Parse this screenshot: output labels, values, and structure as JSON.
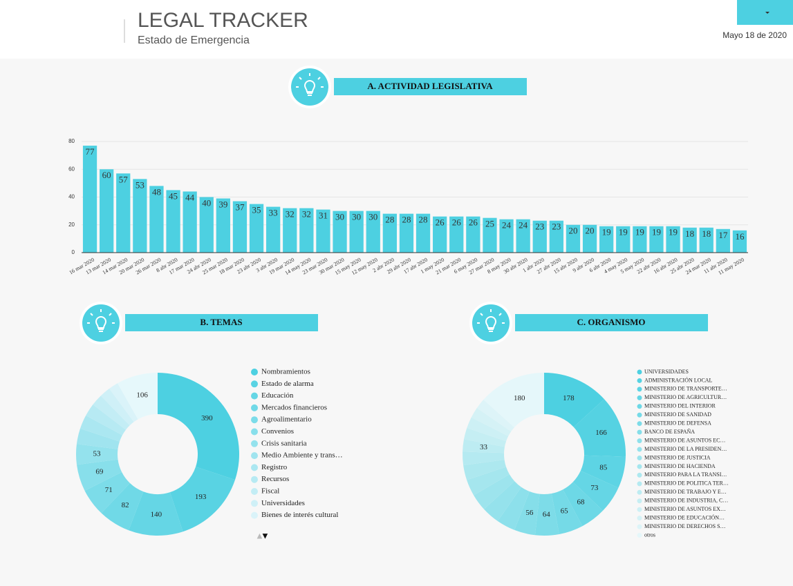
{
  "header": {
    "title": "LEGAL TRACKER",
    "subtitle": "Estado de Emergencia",
    "date": "Mayo 18 de 2020"
  },
  "chart_data": [
    {
      "type": "bar",
      "title": "A. ACTIVIDAD LEGISLATIVA",
      "color": "#4dd0e1",
      "categories": [
        "16 mar 2020",
        "13 mar 2020",
        "14 mar 2020",
        "20 mar 2020",
        "26 mar 2020",
        "8 abr 2020",
        "17 mar 2020",
        "24 abr 2020",
        "25 mar 2020",
        "18 mar 2020",
        "23 abr 2020",
        "3 abr 2020",
        "19 mar 2020",
        "14 may 2020",
        "23 mar 2020",
        "30 mar 2020",
        "15 may 2020",
        "12 may 2020",
        "2 abr 2020",
        "29 abr 2020",
        "17 abr 2020",
        "1 may 2020",
        "21 mar 2020",
        "6 may 2020",
        "27 mar 2020",
        "8 may 2020",
        "30 abr 2020",
        "1 abr 2020",
        "27 abr 2020",
        "15 abr 2020",
        "9 abr 2020",
        "6 abr 2020",
        "4 may 2020",
        "5 may 2020",
        "22 abr 2020",
        "16 abr 2020",
        "25 abr 2020",
        "24 mar 2020",
        "11 abr 2020",
        "11 may 2020"
      ],
      "values": [
        77,
        60,
        57,
        53,
        48,
        45,
        44,
        40,
        39,
        37,
        35,
        33,
        32,
        32,
        31,
        30,
        30,
        30,
        28,
        28,
        28,
        26,
        26,
        26,
        25,
        24,
        24,
        23,
        23,
        20,
        20,
        19,
        19,
        19,
        19,
        19,
        18,
        18,
        17,
        16
      ],
      "ylim": [
        0,
        80
      ],
      "yticks": [
        0,
        20,
        40,
        60,
        80
      ],
      "grid": true
    },
    {
      "type": "pie",
      "title": "B. TEMAS",
      "categories": [
        "Nombramientos",
        "Estado de alarma",
        "Educación",
        "Mercados financieros",
        "Agroalimentario",
        "Convenios",
        "Crisis sanitaria",
        "Medio Ambiente y trans…",
        "Registro",
        "Recursos",
        "Fiscal",
        "Universidades",
        "Bienes de interés cultural",
        null
      ],
      "values": [
        390,
        193,
        140,
        82,
        71,
        69,
        53,
        40,
        36,
        33,
        30,
        28,
        25,
        106
      ],
      "value_labels": [
        "390",
        "193",
        "140",
        "82",
        "71",
        "69",
        "53",
        null,
        null,
        null,
        null,
        null,
        null,
        "106"
      ],
      "colors": [
        "#4dd0e1",
        "#59d3e3",
        "#65d6e5",
        "#70d9e7",
        "#7cdce9",
        "#88dfeb",
        "#94e2ed",
        "#a0e4ef",
        "#abe7f1",
        "#b7eaf3",
        "#c3edf5",
        "#cff0f7",
        "#daf3f9",
        "#e6f8fb"
      ]
    },
    {
      "type": "pie",
      "title": "C. ORGANISMO",
      "categories": [
        "UNIVERSIDADES",
        "ADMINISTRACIÓN LOCAL",
        "MINISTERIO DE TRANSPORTE…",
        "MINISTERIO DE AGRICULTUR…",
        "MINISTERIO DEL INTERIOR",
        "MINISTERIO DE SANIDAD",
        "MINISTERIO DE DEFENSA",
        "BANCO DE ESPAÑA",
        "MINISTERIO DE ASUNTOS EC…",
        "MINISTERIO DE LA PRESIDEN…",
        "MINISTERIO DE JUSTICIA",
        "MINISTERIO DE HACIENDA",
        "MINISTERIO PARA LA TRANSI…",
        "MINISTERIO DE POLITICA TER…",
        "MINISTERIO DE TRABAJO Y E…",
        "MINISTERIO DE INDUSTRIA, C…",
        "MINISTERIO DE ASUNTOS EX…",
        "MINISTERIO DE EDUCACIÓN…",
        "MINISTERIO DE DERECHOS S…",
        "otros"
      ],
      "values": [
        178,
        166,
        85,
        73,
        68,
        65,
        64,
        56,
        50,
        48,
        46,
        44,
        40,
        36,
        33,
        31,
        30,
        29,
        28,
        180
      ],
      "value_labels": [
        "178",
        "166",
        "85",
        "73",
        "68",
        "65",
        "64",
        "56",
        null,
        null,
        null,
        null,
        null,
        null,
        "33",
        null,
        null,
        null,
        null,
        "180"
      ],
      "colors": [
        "#4dd0e1",
        "#55d2e2",
        "#5dd4e4",
        "#65d6e5",
        "#6dd8e6",
        "#75dae7",
        "#7ddce8",
        "#85dee9",
        "#8de0eb",
        "#95e2ec",
        "#9de4ed",
        "#a5e6ee",
        "#ade8ef",
        "#b5eaf1",
        "#bdecf2",
        "#c5eef3",
        "#cdf0f5",
        "#d5f2f6",
        "#ddf4f8",
        "#e5f7fa"
      ]
    }
  ]
}
